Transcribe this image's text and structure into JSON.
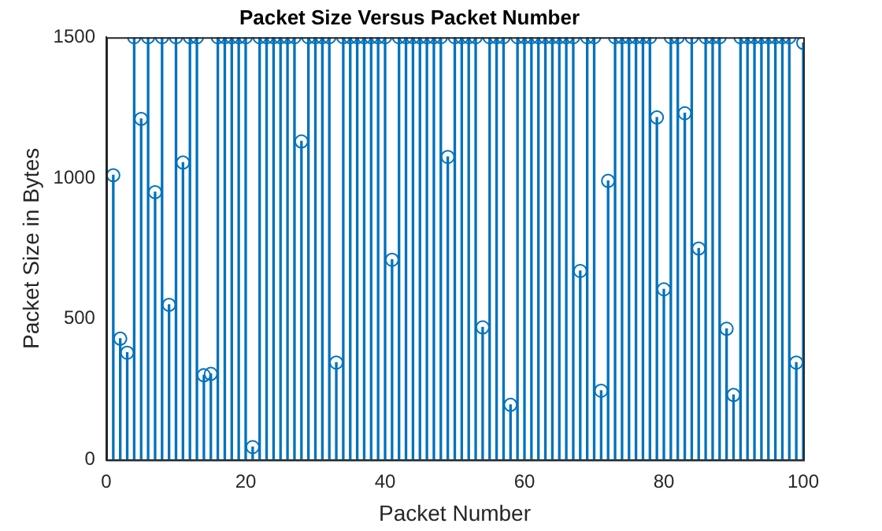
{
  "chart_data": {
    "type": "lollipop",
    "title": "Packet Size Versus Packet Number",
    "xlabel": "Packet Number",
    "ylabel": "Packet Size in Bytes",
    "x": [
      1,
      2,
      3,
      4,
      5,
      6,
      7,
      8,
      9,
      10,
      11,
      12,
      13,
      14,
      15,
      16,
      17,
      18,
      19,
      20,
      21,
      22,
      23,
      24,
      25,
      26,
      27,
      28,
      29,
      30,
      31,
      32,
      33,
      34,
      35,
      36,
      37,
      38,
      39,
      40,
      41,
      42,
      43,
      44,
      45,
      46,
      47,
      48,
      49,
      50,
      51,
      52,
      53,
      54,
      55,
      56,
      57,
      58,
      59,
      60,
      61,
      62,
      63,
      64,
      65,
      66,
      67,
      68,
      69,
      70,
      71,
      72,
      73,
      74,
      75,
      76,
      77,
      78,
      79,
      80,
      81,
      82,
      83,
      84,
      85,
      86,
      87,
      88,
      89,
      90,
      91,
      92,
      93,
      94,
      95,
      96,
      97,
      98,
      99,
      100
    ],
    "values": [
      1010,
      430,
      380,
      1500,
      1210,
      1500,
      950,
      1500,
      550,
      1500,
      1055,
      1500,
      1500,
      300,
      305,
      1500,
      1500,
      1500,
      1500,
      1500,
      45,
      1500,
      1500,
      1500,
      1500,
      1500,
      1500,
      1130,
      1500,
      1500,
      1500,
      1500,
      345,
      1500,
      1500,
      1500,
      1500,
      1500,
      1500,
      1500,
      710,
      1500,
      1500,
      1500,
      1500,
      1500,
      1500,
      1500,
      1075,
      1500,
      1500,
      1500,
      1500,
      470,
      1500,
      1500,
      1500,
      195,
      1500,
      1500,
      1500,
      1500,
      1500,
      1500,
      1500,
      1500,
      1500,
      670,
      1500,
      1500,
      245,
      990,
      1500,
      1500,
      1500,
      1500,
      1500,
      1500,
      1215,
      605,
      1500,
      1500,
      1230,
      1500,
      750,
      1500,
      1500,
      1500,
      465,
      230,
      1500,
      1500,
      1500,
      1500,
      1500,
      1500,
      1500,
      1500,
      345,
      1480
    ],
    "color": "#0072bd",
    "marker": "circle",
    "grid": false,
    "legend": false,
    "xlim": [
      0,
      100
    ],
    "xticks": [
      0,
      20,
      40,
      60,
      80,
      100
    ],
    "ylim": [
      0,
      1500
    ],
    "yticks": [
      0,
      500,
      1000,
      1500
    ]
  }
}
